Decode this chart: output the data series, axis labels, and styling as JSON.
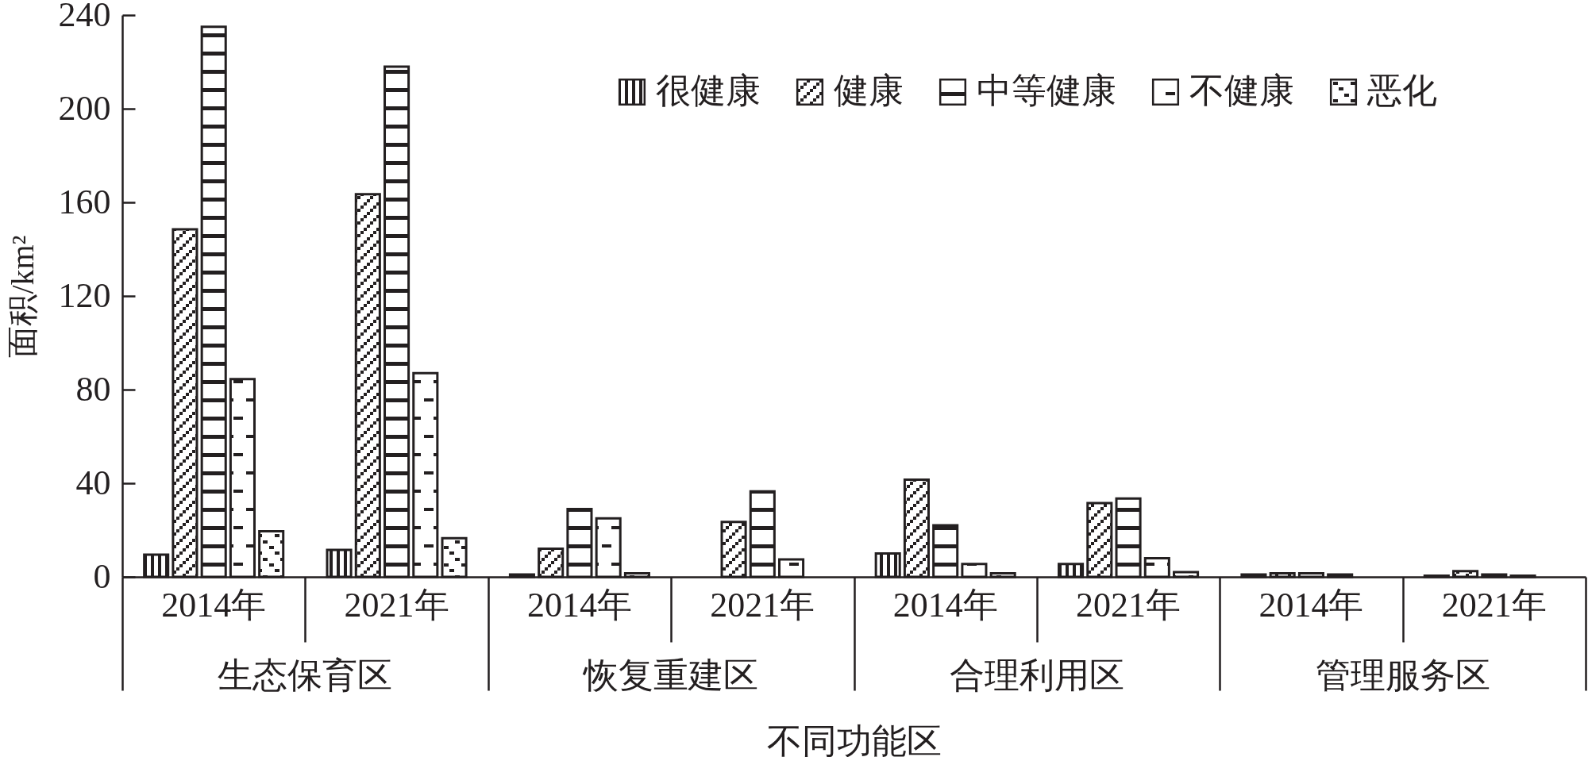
{
  "chart_data": {
    "type": "bar",
    "xlabel": "不同功能区",
    "ylabel": "面积/km²",
    "categories": [
      "2014年",
      "2021年",
      "2014年",
      "2021年",
      "2014年",
      "2021年",
      "2014年",
      "2021年"
    ],
    "annotations": [
      "生态保育区",
      "恢复重建区",
      "合理利用区",
      "管理服务区"
    ],
    "ylim": [
      0,
      240
    ],
    "yticks": [
      0,
      40,
      80,
      120,
      160,
      200,
      240
    ],
    "legend": "top right",
    "series": [
      {
        "name": "很健康",
        "color": "#231f20",
        "values": [
          9.5,
          11.5,
          1,
          null,
          10,
          5.5,
          1,
          0.5
        ]
      },
      {
        "name": "健康",
        "color": "#231f20",
        "values": [
          148.5,
          163.5,
          12,
          23.5,
          41.5,
          31.5,
          1.5,
          2.5
        ]
      },
      {
        "name": "中等健康",
        "color": "#231f20",
        "values": [
          235,
          218,
          29,
          36.5,
          22,
          33.5,
          1.5,
          1
        ]
      },
      {
        "name": "不健康",
        "color": "#231f20",
        "values": [
          84.5,
          87,
          25,
          7.5,
          5.5,
          8,
          1,
          0.5
        ]
      },
      {
        "name": "恶化",
        "color": "#231f20",
        "values": [
          19.5,
          16.5,
          1.5,
          null,
          1.5,
          2,
          null,
          null
        ]
      }
    ]
  }
}
